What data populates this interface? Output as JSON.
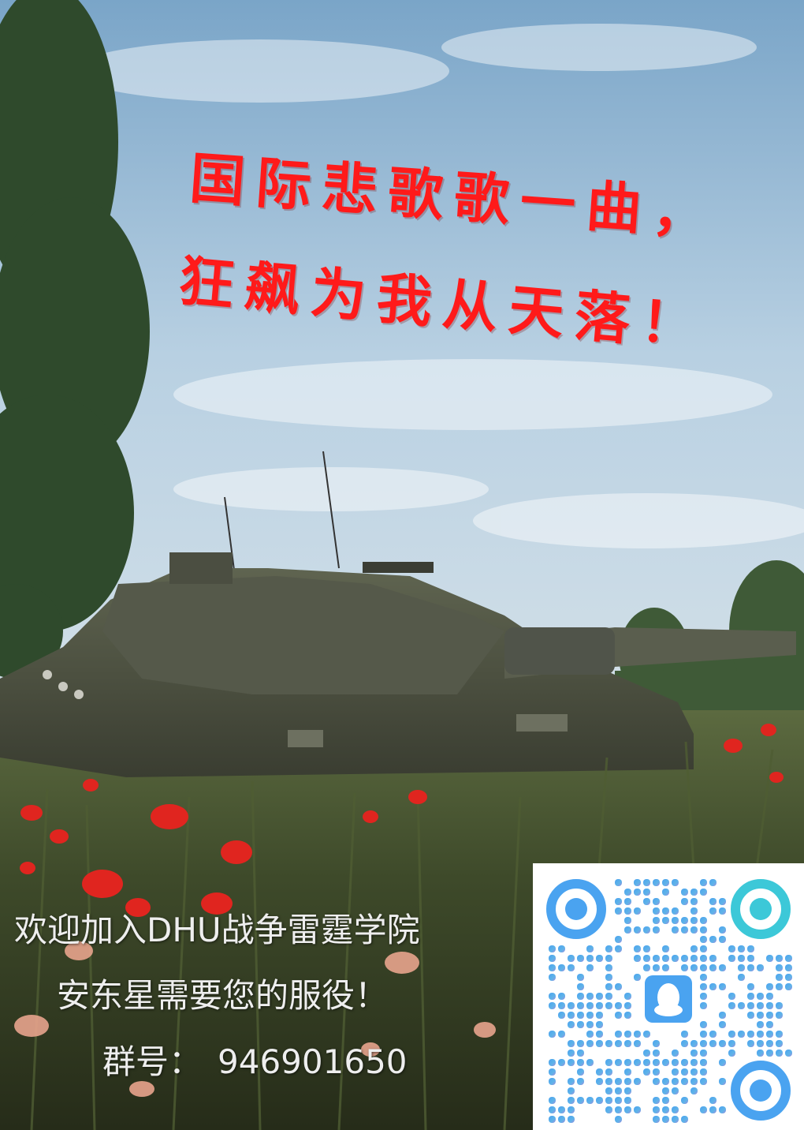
{
  "poster": {
    "title_line1": "国际悲歌歌一曲，",
    "title_line2": "狂飙为我从天落！",
    "join_text": "欢迎加入DHU战争雷霆学院",
    "service_text": "安东星需要您的服役！",
    "group_label": "群号：",
    "group_number": "946901650"
  },
  "qr": {
    "icon": "qq-penguin-icon",
    "colors": {
      "primary": "#4aa3f0",
      "secondary": "#9b8fe0",
      "accent": "#3cc8d8"
    }
  }
}
